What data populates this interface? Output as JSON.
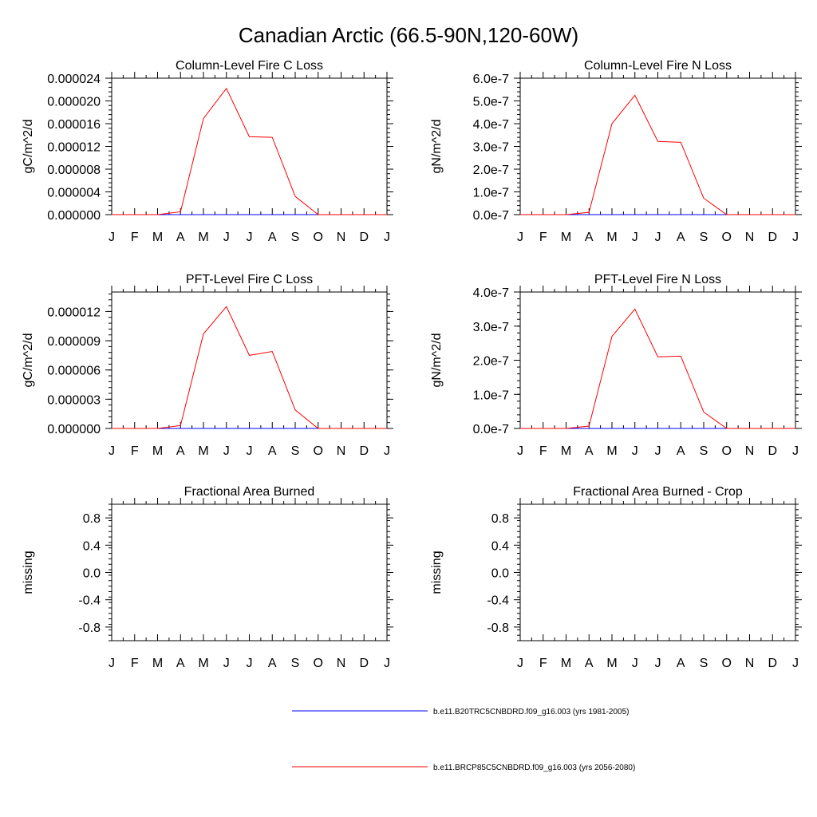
{
  "title": "Canadian Arctic (66.5-90N,120-60W)",
  "colors": {
    "series_a": "#0000ff",
    "series_b": "#ff0000",
    "frame": "#000000"
  },
  "months": [
    "J",
    "F",
    "M",
    "A",
    "M",
    "J",
    "J",
    "A",
    "S",
    "O",
    "N",
    "D",
    "J"
  ],
  "legend": [
    {
      "label": "b.e11.B20TRC5CNBDRD.f09_g16.003 (yrs 1981-2005)",
      "color": "#0000ff"
    },
    {
      "label": "b.e11.BRCP85C5CNBDRD.f09_g16.003 (yrs 2056-2080)",
      "color": "#ff0000"
    }
  ],
  "chart_data": [
    {
      "type": "line",
      "title": "Column-Level Fire C Loss",
      "ylabel": "gC/m^2/d",
      "ylim": [
        0,
        2.4e-05
      ],
      "yticks": [
        0,
        4e-06,
        8e-06,
        1.2e-05,
        1.6e-05,
        2e-05,
        2.4e-05
      ],
      "ytick_labels": [
        "0.000000",
        "0.000004",
        "0.000008",
        "0.000012",
        "0.000016",
        "0.000020",
        "0.000024"
      ],
      "series": [
        {
          "color": "#0000ff",
          "values": [
            0,
            0,
            0,
            0,
            0,
            0,
            0,
            0,
            0,
            0,
            0,
            0,
            0
          ]
        },
        {
          "color": "#ff0000",
          "values": [
            0,
            0,
            0,
            5e-07,
            1.69e-05,
            2.22e-05,
            1.37e-05,
            1.36e-05,
            3.2e-06,
            0,
            0,
            0,
            0
          ]
        }
      ]
    },
    {
      "type": "line",
      "title": "Column-Level Fire N Loss",
      "ylabel": "gN/m^2/d",
      "ylim": [
        0,
        6e-07
      ],
      "yticks": [
        0,
        1e-07,
        2e-07,
        3e-07,
        4e-07,
        5e-07,
        6e-07
      ],
      "ytick_labels": [
        "0.0e-7",
        "1.0e-7",
        "2.0e-7",
        "3.0e-7",
        "4.0e-7",
        "5.0e-7",
        "6.0e-7"
      ],
      "series": [
        {
          "color": "#0000ff",
          "values": [
            0,
            0,
            0,
            0,
            0,
            0,
            0,
            0,
            0,
            0,
            0,
            0,
            0
          ]
        },
        {
          "color": "#ff0000",
          "values": [
            0,
            0,
            0,
            1e-08,
            4e-07,
            5.25e-07,
            3.22e-07,
            3.18e-07,
            7.2e-08,
            0,
            0,
            0,
            0
          ]
        }
      ]
    },
    {
      "type": "line",
      "title": "PFT-Level Fire C Loss",
      "ylabel": "gC/m^2/d",
      "ylim": [
        0,
        1.4e-05
      ],
      "yticks": [
        0,
        3e-06,
        6e-06,
        9e-06,
        1.2e-05
      ],
      "ytick_labels": [
        "0.000000",
        "0.000003",
        "0.000006",
        "0.000009",
        "0.000012"
      ],
      "series": [
        {
          "color": "#0000ff",
          "values": [
            0,
            0,
            0,
            0,
            0,
            0,
            0,
            0,
            0,
            0,
            0,
            0,
            0
          ]
        },
        {
          "color": "#ff0000",
          "values": [
            0,
            0,
            0,
            3e-07,
            9.7e-06,
            1.25e-05,
            7.5e-06,
            7.9e-06,
            1.9e-06,
            0,
            0,
            0,
            0
          ]
        }
      ]
    },
    {
      "type": "line",
      "title": "PFT-Level Fire N Loss",
      "ylabel": "gN/m^2/d",
      "ylim": [
        0,
        4e-07
      ],
      "yticks": [
        0,
        1e-07,
        2e-07,
        3e-07,
        4e-07
      ],
      "ytick_labels": [
        "0.0e-7",
        "1.0e-7",
        "2.0e-7",
        "3.0e-7",
        "4.0e-7"
      ],
      "series": [
        {
          "color": "#0000ff",
          "values": [
            0,
            0,
            0,
            0,
            0,
            0,
            0,
            0,
            0,
            0,
            0,
            0,
            0
          ]
        },
        {
          "color": "#ff0000",
          "values": [
            0,
            0,
            0,
            7e-09,
            2.7e-07,
            3.5e-07,
            2.1e-07,
            2.12e-07,
            4.8e-08,
            0,
            0,
            0,
            0
          ]
        }
      ]
    },
    {
      "type": "line",
      "title": "Fractional Area Burned",
      "ylabel": "missing",
      "ylim": [
        -1,
        1
      ],
      "yticks": [
        -0.8,
        -0.4,
        0,
        0.4,
        0.8
      ],
      "ytick_labels": [
        "-0.8",
        "-0.4",
        "0.0",
        "0.4",
        "0.8"
      ],
      "series": []
    },
    {
      "type": "line",
      "title": "Fractional Area Burned - Crop",
      "ylabel": "missing",
      "ylim": [
        -1,
        1
      ],
      "yticks": [
        -0.8,
        -0.4,
        0,
        0.4,
        0.8
      ],
      "ytick_labels": [
        "-0.8",
        "-0.4",
        "0.0",
        "0.4",
        "0.8"
      ],
      "series": []
    }
  ]
}
